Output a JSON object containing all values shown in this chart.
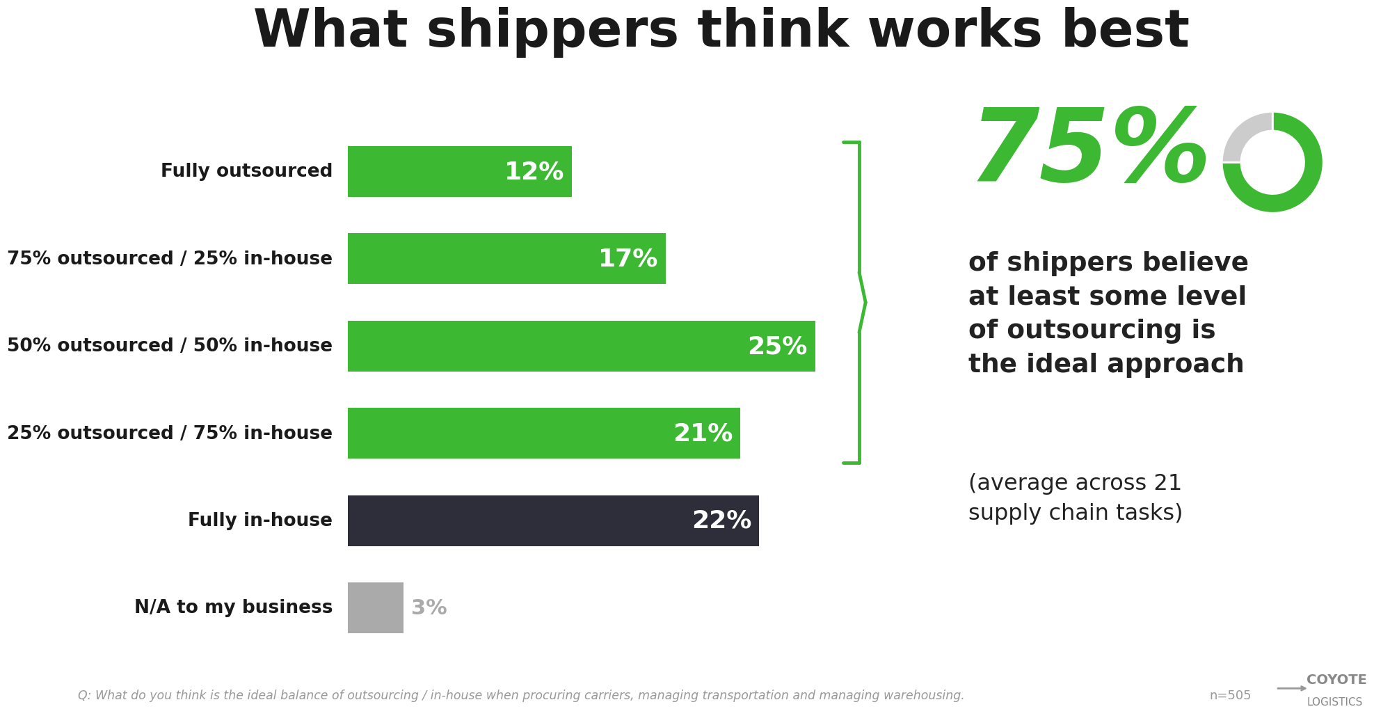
{
  "title": "What shippers think works best",
  "categories": [
    "Fully outsourced",
    "75% outsourced / 25% in-house",
    "50% outsourced / 50% in-house",
    "25% outsourced / 75% in-house",
    "Fully in-house",
    "N/A to my business"
  ],
  "values": [
    12,
    17,
    25,
    21,
    22,
    3
  ],
  "bar_colors": [
    "#3cb832",
    "#3cb832",
    "#3cb832",
    "#3cb832",
    "#2e2e3a",
    "#aaaaaa"
  ],
  "green_color": "#3cb832",
  "dark_color": "#2e2e3a",
  "gray_color": "#aaaaaa",
  "title_color": "#1a1a1a",
  "background_color": "#ffffff",
  "big_percent": "75%",
  "big_percent_color": "#3cb832",
  "annotation_text": "of shippers believe\nat least some level\nof outsourcing is\nthe ideal approach",
  "annotation_sub": "(average across 21\nsupply chain tasks)",
  "annotation_color": "#222222",
  "footnote": "Q: What do you think is the ideal balance of outsourcing / in-house when procuring carriers, managing transportation and managing warehousing.",
  "footnote_n": "n=505",
  "footnote_color": "#999999",
  "max_val": 30,
  "donut_green": 75,
  "donut_gray": 25,
  "donut_gray_color": "#cccccc"
}
